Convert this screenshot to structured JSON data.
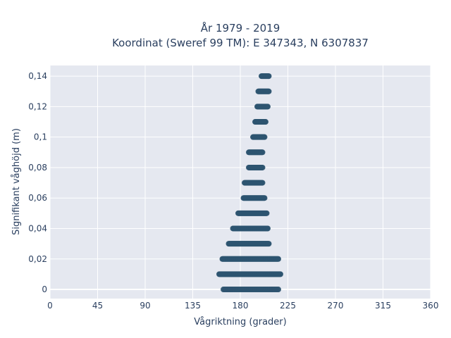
{
  "chart_data": {
    "type": "scatter",
    "title": "År 1979 - 2019",
    "subtitle": "Koordinat (Sweref 99 TM): E 347343, N 6307837",
    "xlabel": "Vågriktning (grader)",
    "ylabel": "Signifikant våghöjd (m)",
    "xlim": [
      0,
      360
    ],
    "ylim": [
      -0.006,
      0.147
    ],
    "x_ticks": [
      0,
      45,
      90,
      135,
      180,
      225,
      270,
      315,
      360
    ],
    "x_tick_labels": [
      "0",
      "45",
      "90",
      "135",
      "180",
      "225",
      "270",
      "315",
      "360"
    ],
    "y_ticks": [
      0,
      0.02,
      0.04,
      0.06,
      0.08,
      0.1,
      0.12,
      0.14
    ],
    "y_tick_labels": [
      "0",
      "0,02",
      "0,04",
      "0,06",
      "0,08",
      "0,1",
      "0,12",
      "0,14"
    ],
    "grid": true,
    "marker_color": "#2e5470",
    "plot_bg": "#e5e8f0",
    "series": [
      {
        "bands": [
          {
            "y": 0.0,
            "x_min": 164,
            "x_max": 216
          },
          {
            "y": 0.01,
            "x_min": 160,
            "x_max": 218
          },
          {
            "y": 0.02,
            "x_min": 163,
            "x_max": 216
          },
          {
            "y": 0.03,
            "x_min": 169,
            "x_max": 207
          },
          {
            "y": 0.04,
            "x_min": 173,
            "x_max": 206
          },
          {
            "y": 0.05,
            "x_min": 178,
            "x_max": 205
          },
          {
            "y": 0.06,
            "x_min": 183,
            "x_max": 203
          },
          {
            "y": 0.07,
            "x_min": 184,
            "x_max": 201
          },
          {
            "y": 0.08,
            "x_min": 188,
            "x_max": 201
          },
          {
            "y": 0.09,
            "x_min": 188,
            "x_max": 201
          },
          {
            "y": 0.1,
            "x_min": 192,
            "x_max": 203
          },
          {
            "y": 0.11,
            "x_min": 194,
            "x_max": 204
          },
          {
            "y": 0.12,
            "x_min": 196,
            "x_max": 206
          },
          {
            "y": 0.13,
            "x_min": 197,
            "x_max": 207
          },
          {
            "y": 0.14,
            "x_min": 200,
            "x_max": 207
          }
        ],
        "sparse_points_at_zero": [
          164,
          167,
          170,
          172,
          210,
          216
        ]
      }
    ]
  }
}
